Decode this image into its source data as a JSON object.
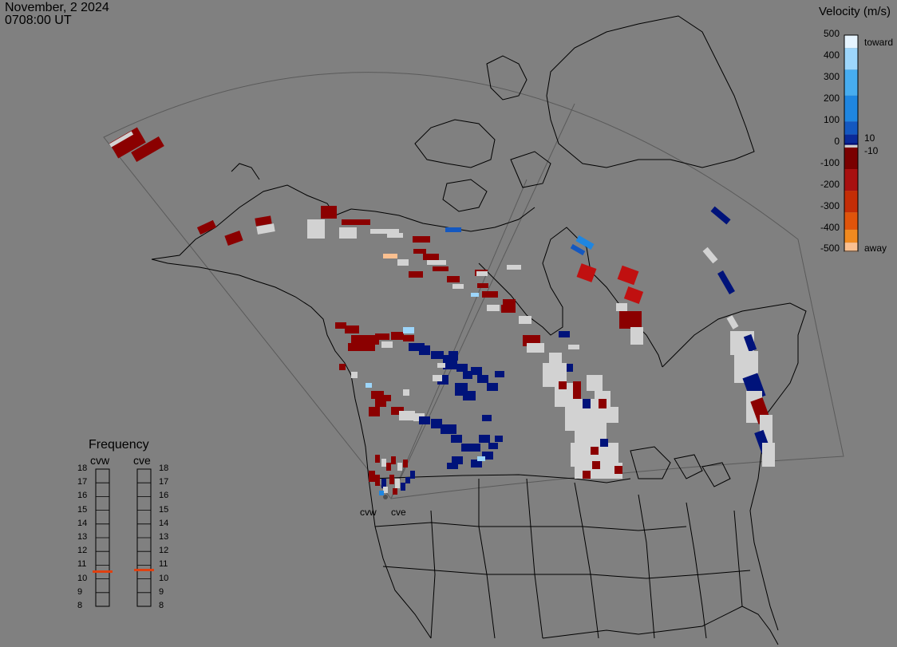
{
  "header": {
    "date": "November, 2 2024",
    "time": "0708:00 UT"
  },
  "velocity_scale": {
    "title": "Velocity (m/s)",
    "ticks": [
      "500",
      "400",
      "300",
      "200",
      "100",
      "0",
      "-100",
      "-200",
      "-300",
      "-400",
      "-500"
    ],
    "near_zero_labels": [
      "10",
      "-10"
    ],
    "toward_label": "toward",
    "away_label": "away",
    "colors": [
      "#e6f4ff",
      "#9dd6fb",
      "#47adf0",
      "#1f86e0",
      "#1458c0",
      "#0a2a99",
      "#000a6e",
      "#d0d0d0",
      "#7a0000",
      "#a81010",
      "#c42d06",
      "#e0540b",
      "#f08a20",
      "#fbc090",
      "#ffe0c8"
    ]
  },
  "frequency": {
    "title": "Frequency",
    "radars": [
      {
        "name": "cvw",
        "current_mhz": 10.7
      },
      {
        "name": "cve",
        "current_mhz": 10.8
      }
    ],
    "ticks": [
      "18",
      "17",
      "16",
      "15",
      "14",
      "13",
      "12",
      "11",
      "10",
      "9",
      "8"
    ],
    "marker_color": "#e04010"
  },
  "radar_sites": [
    "cvw",
    "cve"
  ],
  "colors": {
    "background": "#808080",
    "coast": "#000000",
    "fov": "#5a5a5a",
    "ground_scatter": "#d2d2d2"
  }
}
